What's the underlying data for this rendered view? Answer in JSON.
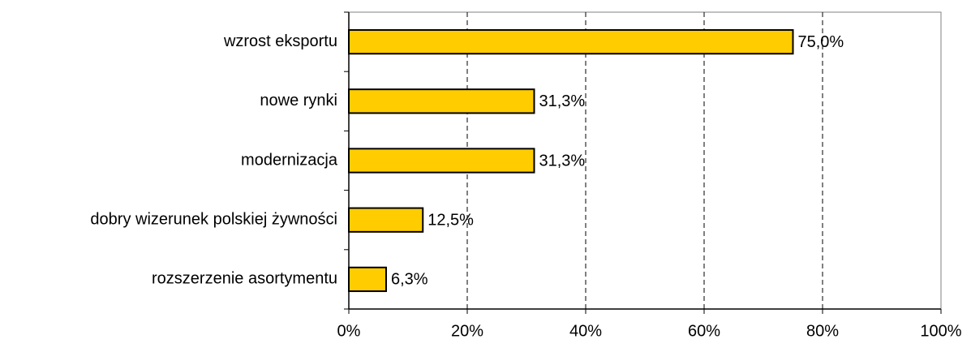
{
  "chart_data": {
    "type": "bar",
    "orientation": "horizontal",
    "categories": [
      "wzrost eksportu",
      "nowe rynki",
      "modernizacja",
      "dobry wizerunek polskiej żywności",
      "rozszerzenie asortymentu"
    ],
    "values": [
      75.0,
      31.3,
      31.3,
      12.5,
      6.3
    ],
    "value_labels": [
      "75,0%",
      "31,3%",
      "31,3%",
      "12,5%",
      "6,3%"
    ],
    "color": "#ffcc00",
    "xlim": [
      0,
      100
    ],
    "xticks": [
      {
        "value": 0,
        "label": "0%"
      },
      {
        "value": 20,
        "label": "20%"
      },
      {
        "value": 40,
        "label": "40%"
      },
      {
        "value": 60,
        "label": "60%"
      },
      {
        "value": 80,
        "label": "80%"
      },
      {
        "value": 100,
        "label": "100%"
      }
    ],
    "grid": true
  }
}
